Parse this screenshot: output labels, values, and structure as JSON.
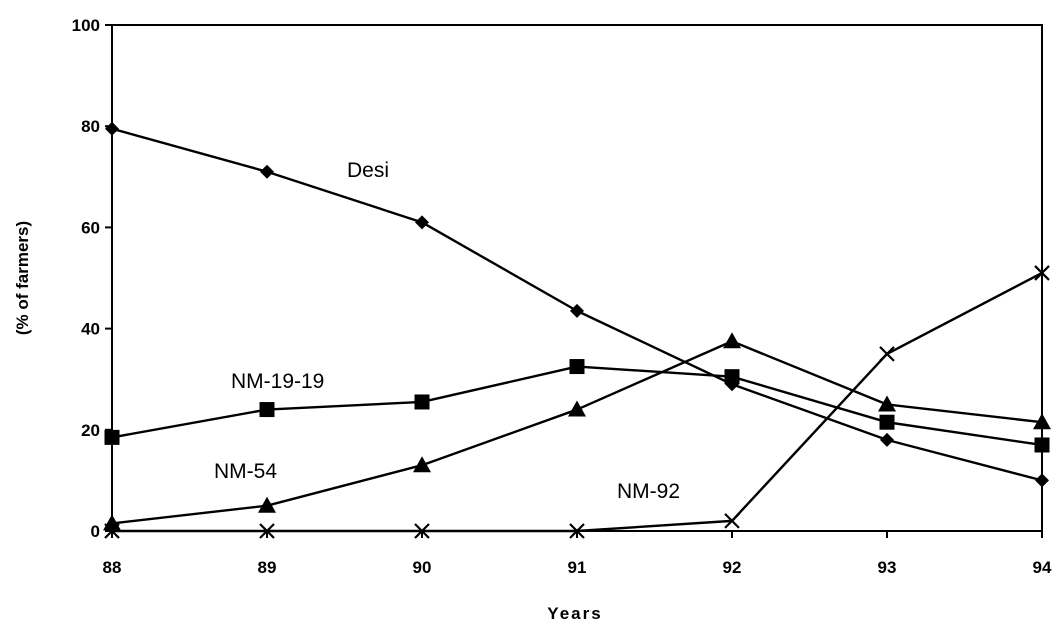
{
  "chart_data": {
    "type": "line",
    "title": "",
    "xlabel": "Years",
    "ylabel": "(% of farmers)",
    "x": [
      "88",
      "89",
      "90",
      "91",
      "92",
      "93",
      "94"
    ],
    "xlim": [
      "88",
      "94"
    ],
    "ylim": [
      0,
      100
    ],
    "yticks": [
      0,
      20,
      40,
      60,
      80,
      100
    ],
    "grid": false,
    "legend": "inline labels",
    "series": [
      {
        "name": "Desi",
        "marker": "diamond",
        "values": [
          79.5,
          71,
          61,
          43.5,
          29,
          18,
          10
        ]
      },
      {
        "name": "NM-19-19",
        "marker": "square",
        "values": [
          18.5,
          24,
          25.5,
          32.5,
          30.5,
          21.5,
          17
        ]
      },
      {
        "name": "NM-54",
        "marker": "triangle",
        "values": [
          1.5,
          5,
          13,
          24,
          37.5,
          25,
          21.5
        ]
      },
      {
        "name": "NM-92",
        "marker": "x",
        "values": [
          0,
          0,
          0,
          0,
          2,
          35,
          51
        ]
      }
    ],
    "colors": {
      "line": "#000000",
      "marker": "#000000"
    }
  }
}
